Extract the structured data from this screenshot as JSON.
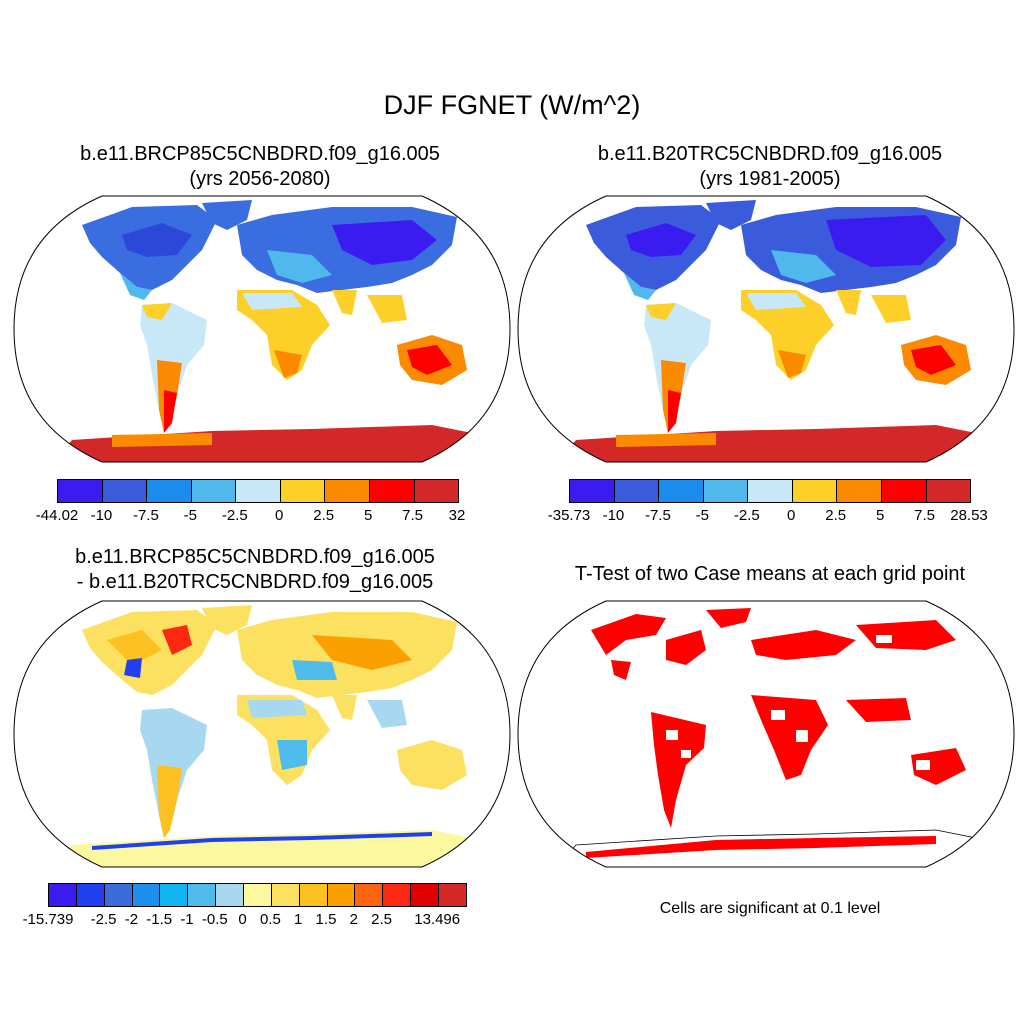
{
  "title": "DJF FGNET (W/m^2)",
  "panels": {
    "top_left": {
      "case": "b.e11.BRCP85C5CNBDRD.f09_g16.005",
      "years": "(yrs 2056-2080)"
    },
    "top_right": {
      "case": "b.e11.B20TRC5CNBDRD.f09_g16.005",
      "years": "(yrs 1981-2005)"
    },
    "bottom_left": {
      "line1": "b.e11.BRCP85C5CNBDRD.f09_g16.005",
      "line2": "- b.e11.B20TRC5CNBDRD.f09_g16.005"
    },
    "bottom_right": {
      "title": "T-Test of two Case means at each grid point",
      "note": "Cells are significant at 0.1 level"
    }
  },
  "colorbars": {
    "top_left": {
      "colors": [
        "#3a1cf0",
        "#3a5cdc",
        "#1c8cec",
        "#50b8ec",
        "#c8e8f8",
        "#fcd028",
        "#fc8a00",
        "#fc0000",
        "#d42828"
      ],
      "labels": [
        "-44.02",
        "-10",
        "-7.5",
        "-5",
        "-2.5",
        "0",
        "2.5",
        "5",
        "7.5",
        "32"
      ]
    },
    "top_right": {
      "colors": [
        "#3a1cf0",
        "#3a5cdc",
        "#1c8cec",
        "#50b8ec",
        "#c8e8f8",
        "#fcd028",
        "#fc8a00",
        "#fc0000",
        "#d42828"
      ],
      "labels": [
        "-35.73",
        "-10",
        "-7.5",
        "-5",
        "-2.5",
        "0",
        "2.5",
        "5",
        "7.5",
        "28.53"
      ]
    },
    "bottom_left": {
      "colors": [
        "#3a1cf0",
        "#2040f0",
        "#3a6cdc",
        "#1c90ec",
        "#10b4f0",
        "#50bcec",
        "#a8d8f0",
        "#fcf8a0",
        "#fce060",
        "#fcc020",
        "#fca000",
        "#fc6410",
        "#fc2810",
        "#e00000",
        "#d42828"
      ],
      "labels": [
        "-15.739",
        "",
        "-2.5",
        "-2",
        "-1.5",
        "-1",
        "-0.5",
        "0",
        "0.5",
        "1",
        "1.5",
        "2",
        "2.5",
        "",
        "13.496"
      ]
    }
  },
  "colors": {
    "ocean": "#ffffff",
    "outline": "#000000",
    "significant": "#ff0000"
  }
}
